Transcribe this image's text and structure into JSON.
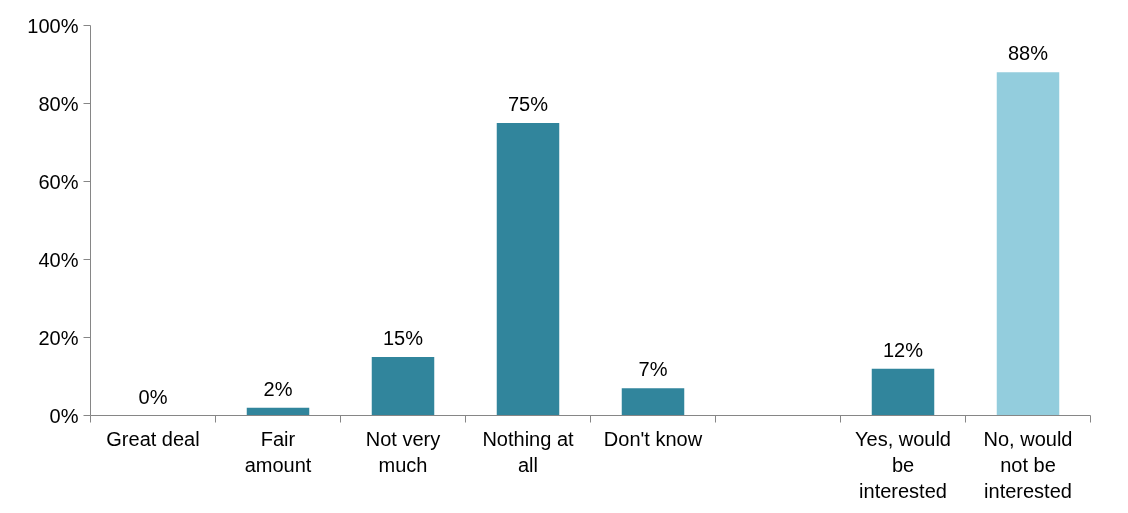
{
  "chart_data": {
    "type": "bar",
    "categories": [
      "Great deal",
      "Fair amount",
      "Not very much",
      "Nothing at all",
      "Don't know",
      null,
      "Yes, would be interested",
      "No, would not be interested"
    ],
    "values": [
      0,
      2,
      15,
      75,
      7,
      null,
      12,
      88
    ],
    "colors": [
      "#31859c",
      "#31859c",
      "#31859c",
      "#31859c",
      "#31859c",
      "#31859c",
      "#31859c",
      "#93cddd"
    ],
    "value_labels": [
      "0%",
      "2%",
      "15%",
      "75%",
      "7%",
      null,
      "12%",
      "88%"
    ],
    "ylim": [
      0,
      100
    ],
    "yticks": [
      {
        "value": 0,
        "label": "0%"
      },
      {
        "value": 20,
        "label": "20%"
      },
      {
        "value": 40,
        "label": "40%"
      },
      {
        "value": 60,
        "label": "60%"
      },
      {
        "value": 80,
        "label": "80%"
      },
      {
        "value": 100,
        "label": "100%"
      }
    ],
    "grid": false
  }
}
